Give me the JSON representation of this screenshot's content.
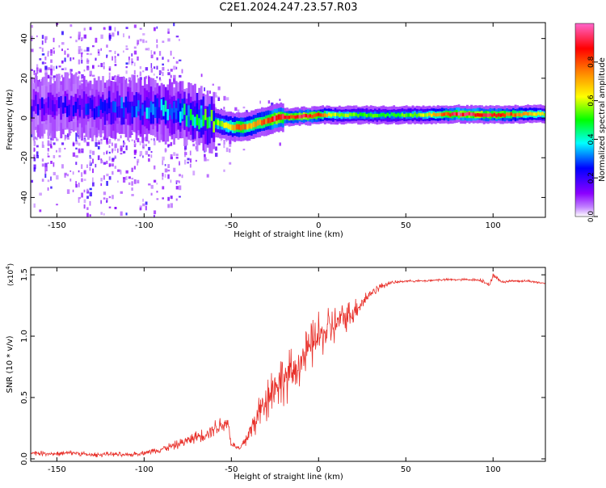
{
  "title": "C2E1.2024.247.23.57.R03",
  "chart_data": [
    {
      "type": "heatmap",
      "xlabel": "Height of straight line (km)",
      "ylabel": "Frequency (Hz)",
      "xlim": [
        -165,
        130
      ],
      "ylim": [
        -50,
        48
      ],
      "xticks": [
        -150,
        -100,
        -50,
        0,
        50,
        100
      ],
      "xtick_labels": [
        "-150",
        "-100",
        "-50",
        "0",
        "50",
        "100"
      ],
      "yticks": [
        -40,
        -20,
        0,
        20,
        40
      ],
      "ytick_labels": [
        "-40",
        "-20",
        "0",
        "20",
        "40"
      ],
      "ridge": {
        "x": [
          -165,
          -150,
          -130,
          -110,
          -90,
          -80,
          -70,
          -60,
          -55,
          -50,
          -45,
          -40,
          -35,
          -30,
          -25,
          -20,
          -15,
          -10,
          -5,
          0,
          10,
          20,
          40,
          60,
          80,
          100,
          120,
          130
        ],
        "freq": [
          6,
          6,
          5,
          5,
          4,
          2,
          0,
          -2,
          -3.5,
          -4.5,
          -4.5,
          -4,
          -2.5,
          -1.5,
          0,
          0.5,
          0.5,
          1,
          1,
          1.5,
          1.5,
          1.5,
          1.5,
          1.5,
          2,
          1.5,
          2,
          2
        ],
        "amplitude": [
          0.2,
          0.2,
          0.25,
          0.3,
          0.35,
          0.4,
          0.5,
          0.55,
          0.6,
          0.7,
          0.8,
          0.7,
          0.75,
          0.8,
          0.95,
          0.9,
          0.85,
          0.95,
          0.9,
          0.8,
          0.6,
          0.55,
          0.5,
          0.6,
          0.95,
          0.9,
          0.7,
          0.6
        ]
      },
      "colorbar": {
        "label": "Normalized spectral amplitude",
        "range": [
          0,
          1
        ],
        "ticks": [
          0.0,
          0.2,
          0.4,
          0.6,
          0.8
        ],
        "tick_labels": [
          "0.0",
          "0.2",
          "0.4",
          "0.6",
          "0.8"
        ],
        "colors": [
          "#ffffff",
          "#8b00ff",
          "#0000ff",
          "#00ffff",
          "#00ff00",
          "#ffff00",
          "#ff8000",
          "#ff0000",
          "#ff66cc"
        ]
      }
    },
    {
      "type": "line",
      "xlabel": "Height of straight line (km)",
      "ylabel": "SNR (10 * v/v)",
      "multiplier_label": "(x10",
      "multiplier_exponent": "4",
      "multiplier_close": ")",
      "xlim": [
        -165,
        130
      ],
      "ylim": [
        -0.02,
        1.56
      ],
      "xticks": [
        -150,
        -100,
        -50,
        0,
        50,
        100
      ],
      "xtick_labels": [
        "-150",
        "-100",
        "-50",
        "0",
        "50",
        "100"
      ],
      "yticks": [
        0.0,
        0.5,
        1.0,
        1.5
      ],
      "ytick_labels": [
        "0.0",
        "0.5",
        "1.0",
        "1.5"
      ],
      "series": [
        {
          "color": "#e8302a",
          "x": [
            -165,
            -150,
            -140,
            -130,
            -120,
            -110,
            -100,
            -90,
            -80,
            -70,
            -65,
            -60,
            -55,
            -52,
            -50,
            -45,
            -40,
            -35,
            -30,
            -25,
            -20,
            -15,
            -10,
            -5,
            0,
            5,
            10,
            15,
            20,
            25,
            30,
            35,
            40,
            50,
            60,
            70,
            80,
            90,
            95,
            98,
            100,
            105,
            110,
            120,
            130
          ],
          "y": [
            0.05,
            0.04,
            0.05,
            0.03,
            0.04,
            0.03,
            0.05,
            0.08,
            0.12,
            0.18,
            0.2,
            0.25,
            0.28,
            0.3,
            0.12,
            0.08,
            0.2,
            0.35,
            0.5,
            0.6,
            0.65,
            0.7,
            0.8,
            0.9,
            1.0,
            1.05,
            1.1,
            1.15,
            1.2,
            1.28,
            1.35,
            1.4,
            1.43,
            1.45,
            1.45,
            1.46,
            1.46,
            1.46,
            1.45,
            1.41,
            1.5,
            1.44,
            1.45,
            1.45,
            1.43
          ],
          "noise": [
            0.02,
            0.02,
            0.02,
            0.02,
            0.02,
            0.02,
            0.02,
            0.03,
            0.04,
            0.05,
            0.06,
            0.07,
            0.08,
            0.08,
            0.03,
            0.03,
            0.1,
            0.15,
            0.2,
            0.22,
            0.22,
            0.22,
            0.2,
            0.2,
            0.2,
            0.18,
            0.16,
            0.14,
            0.1,
            0.08,
            0.05,
            0.03,
            0.02,
            0.01,
            0.01,
            0.01,
            0.01,
            0.01,
            0.02,
            0.02,
            0.02,
            0.01,
            0.01,
            0.01,
            0.01
          ]
        }
      ]
    }
  ]
}
